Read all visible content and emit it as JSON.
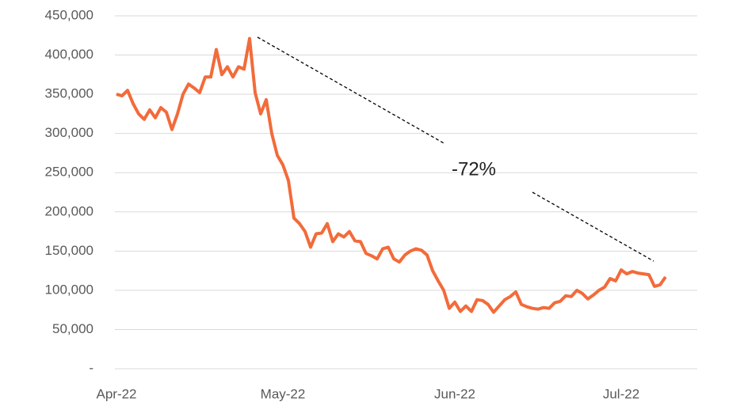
{
  "chart_data": {
    "type": "line",
    "x": [
      0,
      1,
      2,
      3,
      4,
      5,
      6,
      7,
      8,
      9,
      10,
      11,
      12,
      13,
      14,
      15,
      16,
      17,
      18,
      19,
      20,
      21,
      22,
      23,
      24,
      25,
      26,
      27,
      28,
      29,
      30,
      31,
      32,
      33,
      34,
      35,
      36,
      37,
      38,
      39,
      40,
      41,
      42,
      43,
      44,
      45,
      46,
      47,
      48,
      49,
      50,
      51,
      52,
      53,
      54,
      55,
      56,
      57,
      58,
      59,
      60,
      61,
      62,
      63,
      64,
      65,
      66,
      67,
      68,
      69,
      70,
      71,
      72,
      73,
      74,
      75,
      76,
      77,
      78,
      79,
      80,
      81,
      82,
      83,
      84,
      85,
      86,
      87,
      88,
      89,
      90,
      91,
      92,
      93,
      94,
      95,
      96,
      97,
      98,
      99
    ],
    "series": [
      {
        "color": "#f26b3a",
        "values": [
          350000,
          348000,
          355000,
          338000,
          325000,
          318000,
          330000,
          320000,
          333000,
          327000,
          305000,
          325000,
          350000,
          363000,
          358000,
          352000,
          372000,
          372000,
          407000,
          375000,
          385000,
          372000,
          385000,
          382000,
          421000,
          352000,
          325000,
          343000,
          300000,
          272000,
          260000,
          240000,
          192000,
          185000,
          175000,
          155000,
          172000,
          173000,
          185000,
          162000,
          172000,
          168000,
          175000,
          163000,
          162000,
          147000,
          144000,
          140000,
          153000,
          155000,
          140000,
          136000,
          145000,
          150000,
          153000,
          151000,
          145000,
          125000,
          112000,
          100000,
          77000,
          85000,
          73000,
          80000,
          73000,
          88000,
          87000,
          82000,
          72000,
          80000,
          88000,
          92000,
          98000,
          82000,
          79000,
          77000,
          76000,
          78000,
          77000,
          84000,
          86000,
          93000,
          92000,
          100000,
          96000,
          89000,
          94000,
          100000,
          104000,
          115000,
          112000,
          126000,
          121000,
          124000,
          122000,
          121000,
          120000,
          105000,
          107000,
          117000
        ]
      }
    ],
    "xlim": [
      0,
      105
    ],
    "xticks": [
      {
        "value": 0,
        "label": "Apr-22"
      },
      {
        "value": 30,
        "label": "May-22"
      },
      {
        "value": 61,
        "label": "Jun-22"
      },
      {
        "value": 91,
        "label": "Jul-22"
      }
    ],
    "ylim": [
      0,
      450000
    ],
    "yticks": [
      {
        "value": 0,
        "label": "-"
      },
      {
        "value": 50000,
        "label": "50,000"
      },
      {
        "value": 100000,
        "label": "100,000"
      },
      {
        "value": 150000,
        "label": "150,000"
      },
      {
        "value": 200000,
        "label": "200,000"
      },
      {
        "value": 250000,
        "label": "250,000"
      },
      {
        "value": 300000,
        "label": "300,000"
      },
      {
        "value": 350000,
        "label": "350,000"
      },
      {
        "value": 400000,
        "label": "400,000"
      },
      {
        "value": 450000,
        "label": "450,000"
      }
    ],
    "grid": true,
    "annotation": "-72%"
  }
}
